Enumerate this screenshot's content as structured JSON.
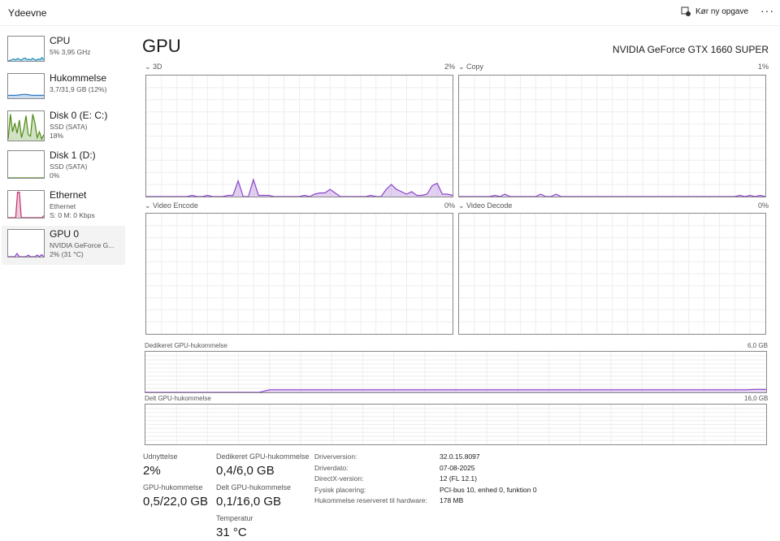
{
  "app_title": "Ydeevne",
  "toolbar": {
    "run_task": "Kør ny opgave",
    "more": "···"
  },
  "sidebar": [
    {
      "name": "CPU",
      "sub1": "5% 3,95 GHz",
      "color": "#1a8bb9",
      "values": [
        0,
        2,
        5,
        8,
        4,
        10,
        6,
        3,
        9,
        12,
        5,
        7,
        4,
        11,
        6,
        3,
        8,
        5,
        14,
        4
      ]
    },
    {
      "name": "Hukommelse",
      "sub1": "3,7/31,9 GB (12%)",
      "color": "#2b78c4",
      "values": [
        12,
        12,
        12,
        13,
        15,
        16,
        15,
        13,
        12,
        12,
        12,
        12
      ]
    },
    {
      "name": "Disk 0 (E: C:)",
      "sub1": "SSD (SATA)",
      "sub2": "18%",
      "color": "#4d8a12",
      "values": [
        5,
        90,
        30,
        60,
        25,
        70,
        10,
        40,
        85,
        20,
        15,
        90,
        60,
        10,
        30,
        5,
        20
      ]
    },
    {
      "name": "Disk 1 (D:)",
      "sub1": "SSD (SATA)",
      "sub2": "0%",
      "color": "#4d8a12",
      "values": [
        0,
        0
      ]
    },
    {
      "name": "Ethernet",
      "sub1": "Ethernet",
      "sub2": "S: 0 M: 0 Kbps",
      "color": "#c1316e",
      "values": [
        0,
        0,
        0,
        0,
        0,
        95,
        95,
        0,
        0,
        0,
        0,
        0,
        0,
        0,
        0,
        0,
        0,
        0,
        0,
        8
      ]
    },
    {
      "name": "GPU 0",
      "sub1": "NVIDIA GeForce G...",
      "sub2": "2% (31 °C)",
      "color": "#8a44c8",
      "values": [
        0,
        0,
        0,
        0,
        12,
        0,
        0,
        0,
        0,
        6,
        0,
        0,
        0,
        6,
        0,
        8,
        0
      ]
    }
  ],
  "gpu": {
    "title": "GPU",
    "name": "NVIDIA GeForce GTX 1660 SUPER",
    "color": "#8a44c8"
  },
  "graphs": [
    {
      "label": "3D",
      "value": "2%",
      "values": [
        0,
        0,
        0,
        0,
        0,
        0,
        0,
        0,
        0,
        1,
        0,
        0,
        1,
        0,
        0,
        0,
        1,
        1,
        13,
        0,
        0,
        14,
        1,
        1,
        1,
        0,
        0,
        0,
        0,
        0,
        0,
        1,
        0,
        2,
        3,
        3,
        6,
        3,
        0,
        0,
        0,
        0,
        0,
        0,
        1,
        0,
        0,
        6,
        10,
        6,
        4,
        2,
        4,
        1,
        1,
        2,
        9,
        11,
        2,
        2,
        1
      ]
    },
    {
      "label": "Copy",
      "value": "1%",
      "values": [
        0,
        0,
        0,
        0,
        0,
        0,
        0,
        1,
        0,
        2,
        0,
        0,
        0,
        0,
        0,
        0,
        2,
        0,
        0,
        2,
        0,
        0,
        0,
        0,
        0,
        0,
        0,
        0,
        0,
        0,
        0,
        0,
        0,
        0,
        0,
        0,
        0,
        0,
        0,
        0,
        0,
        0,
        0,
        0,
        0,
        0,
        0,
        0,
        0,
        0,
        0,
        0,
        0,
        0,
        0,
        1,
        0,
        1,
        0,
        1,
        0
      ]
    },
    {
      "label": "Video Encode",
      "value": "0%",
      "values": []
    },
    {
      "label": "Video Decode",
      "value": "0%",
      "values": []
    }
  ],
  "memory_graphs": [
    {
      "label": "Dedikeret GPU-hukommelse",
      "value": "6,0 GB",
      "values": [
        0,
        0,
        0,
        0,
        0,
        0,
        0,
        0,
        0,
        0,
        0,
        0,
        6.5,
        6.5,
        6.5,
        6.5,
        6.5,
        6.5,
        6.5,
        6.5,
        6.5,
        6.5,
        6.5,
        6.5,
        6.5,
        6.5,
        6.5,
        6.5,
        6.5,
        6.5,
        6.5,
        6.5,
        6.5,
        6.5,
        6.5,
        6.5,
        6.5,
        6.5,
        6.5,
        6.5,
        6.5,
        6.5,
        6.5,
        6.5,
        6.5,
        6.5,
        6.5,
        6.5,
        6.5,
        6.5,
        6.5,
        6.5,
        6.5,
        6.5,
        6.5,
        6.5,
        6.5,
        6.5,
        6.5,
        7.5,
        7.5
      ]
    },
    {
      "label": "Delt GPU-hukommelse",
      "value": "16,0 GB",
      "values": []
    }
  ],
  "stats": {
    "util_label": "Udnyttelse",
    "util": "2%",
    "gpumem_label": "GPU-hukommelse",
    "gpumem": "0,5/22,0 GB",
    "ded_label": "Dedikeret GPU-hukommelse",
    "ded": "0,4/6,0 GB",
    "shared_label": "Delt GPU-hukommelse",
    "shared": "0,1/16,0 GB",
    "temp_label": "Temperatur",
    "temp": "31 °C"
  },
  "info": [
    {
      "k": "Driverversion:",
      "v": "32.0.15.8097"
    },
    {
      "k": "Driverdato:",
      "v": "07-08-2025"
    },
    {
      "k": "DirectX-version:",
      "v": "12 (FL 12.1)"
    },
    {
      "k": "Fysisk placering:",
      "v": "PCI-bus 10, enhed 0, funktion 0"
    },
    {
      "k": "Hukommelse reserveret til hardware:",
      "v": "178 MB"
    }
  ]
}
